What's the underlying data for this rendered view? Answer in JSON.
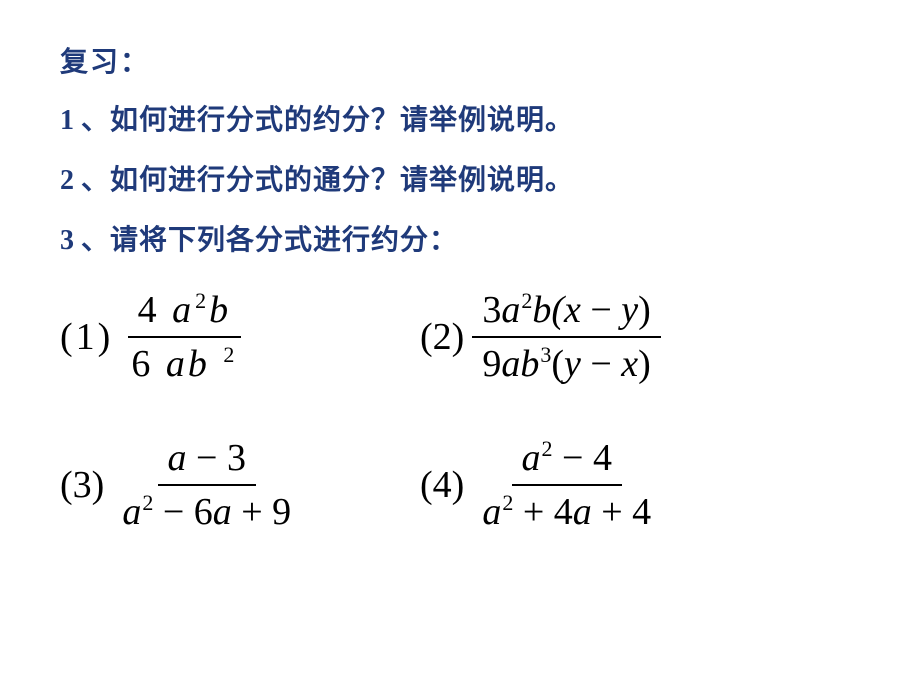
{
  "colors": {
    "heading": "#1f3a7a",
    "text": "#000000",
    "background": "#ffffff"
  },
  "typography": {
    "heading_fontsize": 28,
    "math_fontsize": 38,
    "exponent_fontsize": 22,
    "heading_font": "SimSun",
    "math_font": "Times New Roman"
  },
  "heading": "复习：",
  "questions": [
    {
      "num": "1",
      "sep": "、",
      "text": "如何进行分式的约分？请举例说明。"
    },
    {
      "num": "2",
      "sep": "、",
      "text": "如何进行分式的通分？请举例说明。"
    },
    {
      "num": "3",
      "sep": "、",
      "text": "请将下列各分式进行约分："
    }
  ],
  "problems": {
    "p1": {
      "label": "(1)",
      "numerator": {
        "coef": "4",
        "a_exp": "2",
        "b_exp": null,
        "txt_before_a": "4 ",
        "txt_b": "b"
      },
      "denominator": {
        "coef": "6",
        "a_exp": null,
        "b_exp": "2",
        "txt": "6 ab"
      }
    },
    "p2": {
      "label": "(2)",
      "numerator": {
        "coef": "3",
        "a_exp": "2",
        "b_exp": null,
        "paren": "(x − y)"
      },
      "denominator": {
        "coef": "9",
        "a_exp": null,
        "b_exp": "3",
        "paren": "(y − x)"
      }
    },
    "p3": {
      "label": "(3)",
      "numerator": {
        "txt": "a − 3"
      },
      "denominator": {
        "a_exp": "2",
        "rest": " − 6a + 9"
      }
    },
    "p4": {
      "label": "(4)",
      "numerator": {
        "a_exp": "2",
        "rest": " − 4"
      },
      "denominator": {
        "a_exp": "2",
        "rest": " + 4a + 4"
      }
    }
  }
}
